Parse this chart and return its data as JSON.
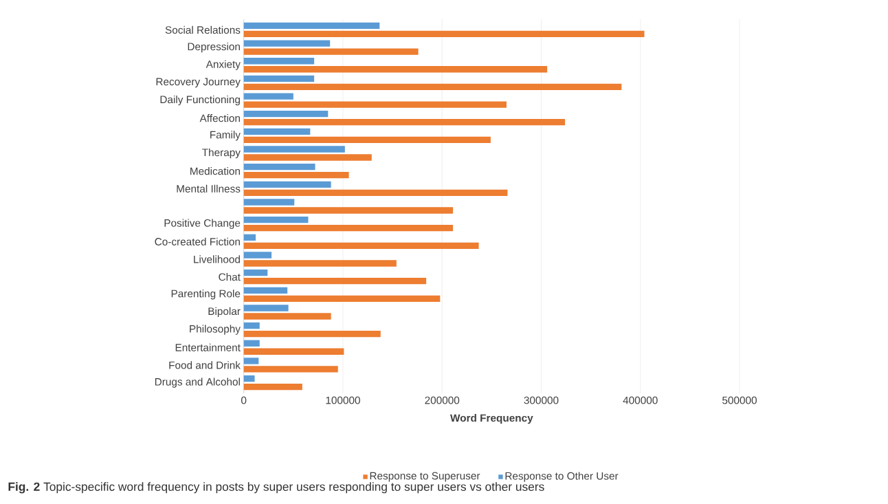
{
  "chart_data": {
    "type": "bar",
    "orientation": "horizontal",
    "categories": [
      "Social Relations",
      "Depression",
      "Anxiety",
      "Recovery Journey",
      "Daily Functioning",
      "Affection",
      "Family",
      "Therapy",
      "Medication",
      "Mental Illness",
      null,
      "Positive  Change",
      "Co-created Fiction",
      "Livelihood",
      "Chat",
      "Parenting Role",
      "Bipolar",
      "Philosophy",
      "Entertainment",
      "Food and Drink",
      "Drugs and Alcohol"
    ],
    "series": [
      {
        "name": "Response to Superuser",
        "color": "#ed7d31",
        "values": [
          404000,
          176000,
          306000,
          381000,
          265000,
          324000,
          249000,
          129000,
          106000,
          266000,
          211000,
          211000,
          237000,
          154000,
          184000,
          198000,
          88000,
          138000,
          101000,
          95000,
          59000
        ]
      },
      {
        "name": "Response to Other User",
        "color": "#5b9bd5",
        "values": [
          137000,
          87000,
          71000,
          71000,
          50000,
          85000,
          67000,
          102000,
          72000,
          88000,
          51000,
          65000,
          12000,
          28000,
          24000,
          44000,
          45000,
          16000,
          16000,
          15000,
          11000
        ]
      }
    ],
    "xlim": [
      0,
      500000
    ],
    "xticks": [
      0,
      100000,
      200000,
      300000,
      400000,
      500000
    ],
    "xlabel": "Word Frequency",
    "grid": "x",
    "legend": "bottom",
    "annotations": [
      "**Fig. 2** Topic-specific word frequency in posts by super users responding to super users vs other users"
    ]
  }
}
